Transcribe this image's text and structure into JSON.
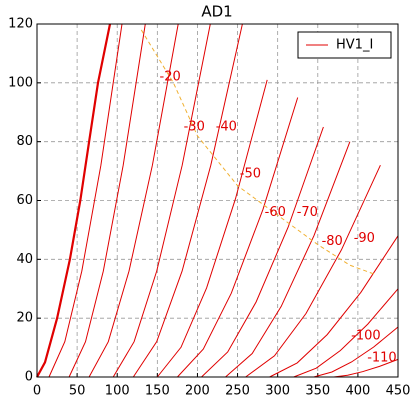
{
  "chart_data": {
    "type": "line",
    "title": "AD1",
    "xlim": [
      0,
      450
    ],
    "xticks": [
      0,
      50,
      100,
      150,
      200,
      250,
      300,
      350,
      400,
      450
    ],
    "ylim": [
      0,
      120
    ],
    "yticks": [
      0,
      20,
      40,
      60,
      80,
      100,
      120
    ],
    "grid": true,
    "legend": "upper right",
    "series": [
      {
        "name": "HV1_I",
        "color": "#e00000",
        "line_width": 1,
        "x": [
          15,
          34.6,
          55.8,
          79.7,
          106,
          null,
          40,
          60.4,
          82.6,
          107.5,
          135,
          null,
          65,
          88.9,
          114.7,
          143.9,
          176,
          null,
          95,
          121,
          149.2,
          181,
          216,
          null,
          120,
          149.2,
          180.9,
          216.7,
          256,
          null,
          150,
          179.5,
          211.4,
          247.4,
          287,
          null,
          175,
          207.3,
          242.2,
          281.7,
          325,
          null,
          205,
          237.7,
          273.1,
          313.1,
          357,
          null,
          235,
          268.3,
          304.4,
          345.2,
          390,
          null,
          260,
          296.1,
          335.3,
          379.4,
          428,
          null,
          290,
          324.4,
          361.7,
          403.8,
          450,
          null,
          320,
          348,
          378.2,
          412.4,
          450,
          null,
          345,
          367.6,
          392,
          419.7,
          450,
          null,
          370,
          387.2,
          405.8,
          426.9,
          450
        ],
        "values": [
          0,
          12,
          36,
          72,
          120,
          null,
          0,
          12,
          36,
          72,
          120,
          null,
          0,
          12,
          36,
          72,
          120,
          null,
          0,
          12,
          36,
          72,
          120,
          null,
          0,
          12,
          36,
          72,
          120,
          null,
          0,
          10.1,
          30.3,
          60.6,
          101,
          null,
          0,
          9.5,
          28.5,
          57,
          95,
          null,
          0,
          8.5,
          25.5,
          51,
          85,
          null,
          0,
          8,
          24,
          48,
          80,
          null,
          0,
          7.2,
          21.6,
          43.2,
          72,
          null,
          0,
          4.8,
          14.4,
          28.8,
          48,
          null,
          0,
          3,
          9,
          18,
          30,
          null,
          0,
          1.7,
          5.1,
          10.2,
          17,
          null,
          0,
          0.6,
          1.8,
          3.6,
          6
        ]
      },
      {
        "color": "#e00000",
        "line_width": 2.2,
        "x": [
          0,
          10,
          25,
          41,
          54,
          65,
          76,
          91
        ],
        "values": [
          0,
          5,
          20,
          40,
          60,
          80,
          100,
          120
        ]
      },
      {
        "color": "#f0b030",
        "line_width": 1,
        "dashed": true,
        "x": [
          130,
          170,
          200,
          250,
          300,
          350,
          390,
          420
        ],
        "values": [
          118,
          100,
          82,
          65,
          55,
          45,
          38,
          35
        ]
      }
    ],
    "annotations": [
      {
        "text": "-20",
        "x": 166,
        "y": 102
      },
      {
        "text": "-30",
        "x": 196,
        "y": 85
      },
      {
        "text": "-40",
        "x": 236,
        "y": 85
      },
      {
        "text": "-50",
        "x": 266,
        "y": 69
      },
      {
        "text": "-60",
        "x": 297,
        "y": 56
      },
      {
        "text": "-70",
        "x": 337,
        "y": 56
      },
      {
        "text": "-80",
        "x": 368,
        "y": 46
      },
      {
        "text": "-90",
        "x": 408,
        "y": 47
      },
      {
        "text": "-100",
        "x": 410,
        "y": 14
      },
      {
        "text": "-110",
        "x": 430,
        "y": 6.5
      }
    ]
  }
}
